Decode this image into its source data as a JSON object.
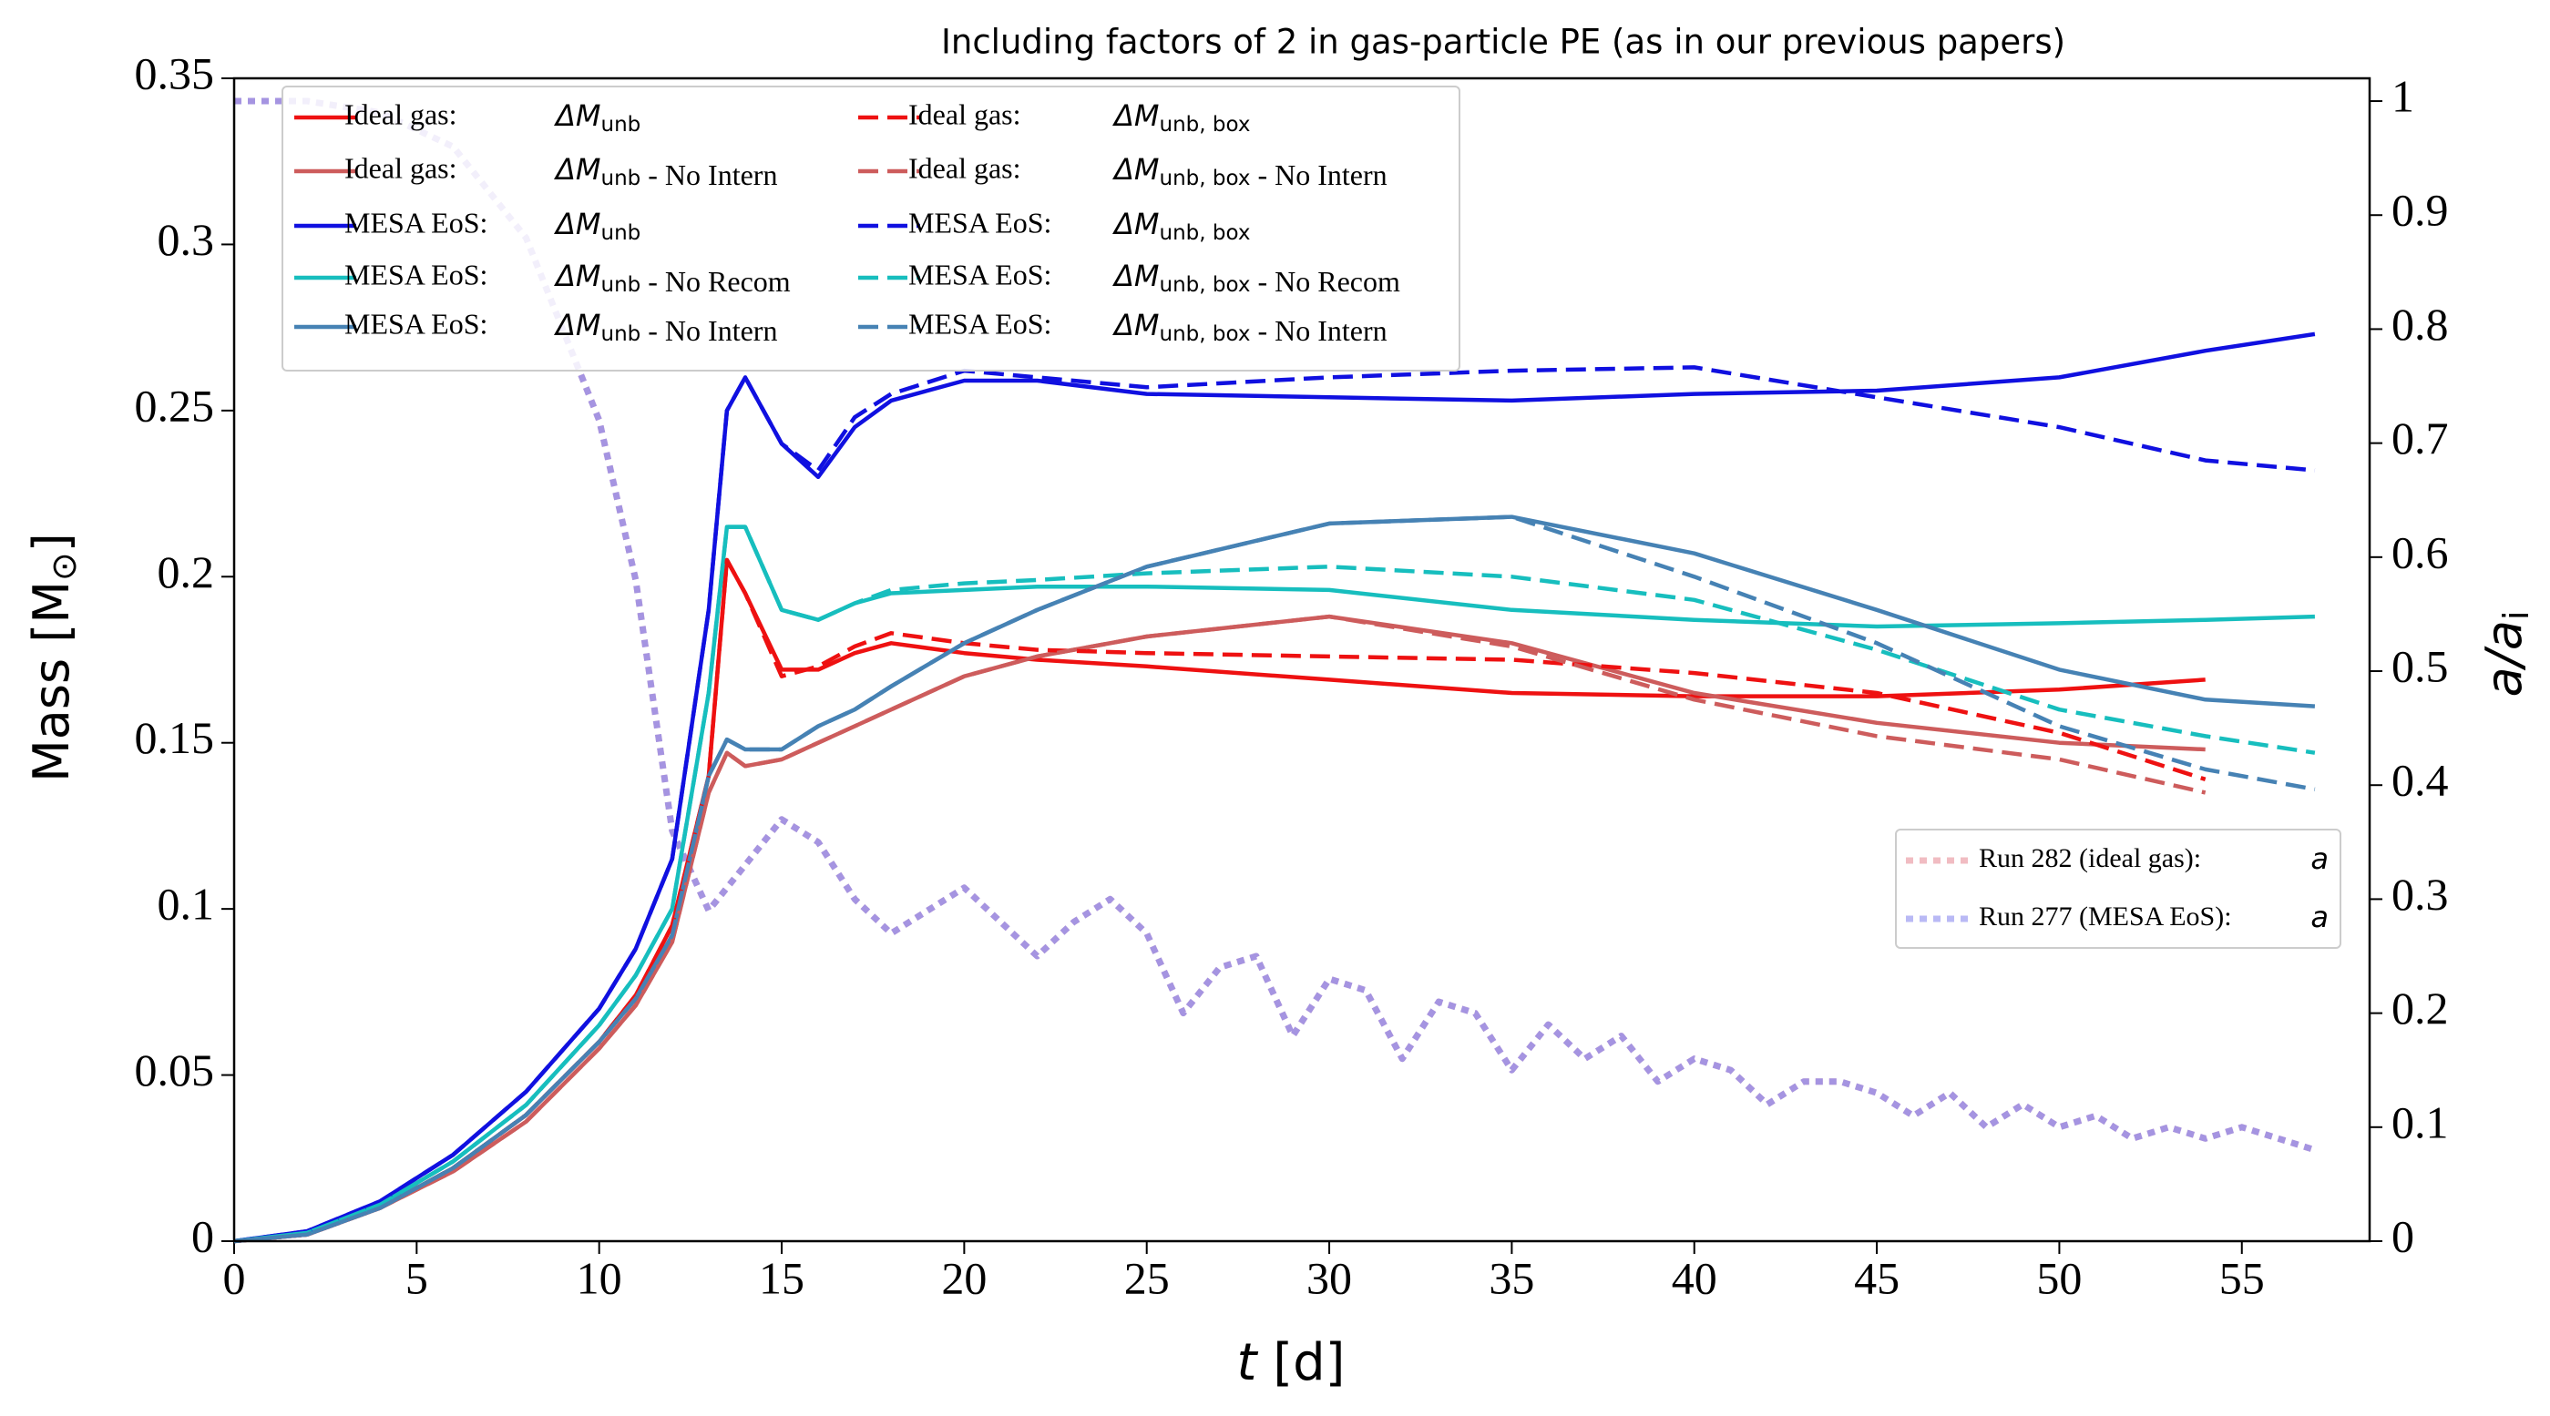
{
  "chart_data": {
    "type": "line",
    "title": "Including factors of 2 in gas-particle PE (as in our previous papers)",
    "x_label": {
      "symbol": "t",
      "unit": "[d]"
    },
    "y_label": {
      "text": "Mass [M",
      "sun": "⊙",
      "close": "]"
    },
    "y2_label": {
      "a": "a/a",
      "sub": "i"
    },
    "xlim": [
      0,
      58.5
    ],
    "xticks": [
      0,
      5,
      10,
      15,
      20,
      25,
      30,
      35,
      40,
      45,
      50,
      55
    ],
    "ylim": [
      0,
      0.35
    ],
    "yticks": [
      0,
      0.05,
      0.1,
      0.15,
      0.2,
      0.25,
      0.3,
      0.35
    ],
    "y2lim": [
      0,
      1.02
    ],
    "y2ticks": [
      0,
      0.1,
      0.2,
      0.3,
      0.4,
      0.5,
      0.6,
      0.7,
      0.8,
      0.9,
      1
    ],
    "x": [
      0,
      2,
      4,
      6,
      8,
      10,
      11,
      12,
      13,
      13.5,
      14,
      15,
      16,
      17,
      18,
      20,
      22,
      25,
      30,
      35,
      40,
      45,
      50,
      54,
      57
    ],
    "series": [
      {
        "name": "Ideal gas:",
        "symbol": "ΔM",
        "subscript": "unb",
        "color": "#ee1111",
        "style": "solid",
        "values": [
          0,
          0.002,
          0.01,
          0.022,
          0.038,
          0.06,
          0.074,
          0.095,
          0.14,
          0.205,
          0.195,
          0.172,
          0.172,
          0.177,
          0.18,
          0.177,
          0.175,
          0.173,
          0.169,
          0.165,
          0.164,
          0.164,
          0.166,
          0.169,
          null
        ]
      },
      {
        "name": "Ideal gas:",
        "symbol": "ΔM",
        "subscript": "unb",
        "suffix": " - No Intern",
        "color": "#cd5c5c",
        "style": "solid",
        "values": [
          0,
          0.002,
          0.01,
          0.021,
          0.036,
          0.058,
          0.071,
          0.09,
          0.135,
          0.147,
          0.143,
          0.145,
          0.15,
          0.155,
          0.16,
          0.17,
          0.176,
          0.182,
          0.188,
          0.18,
          0.165,
          0.156,
          0.15,
          0.148,
          null
        ]
      },
      {
        "name": "MESA EoS:",
        "symbol": "ΔM",
        "subscript": "unb",
        "color": "#1010e0",
        "style": "solid",
        "values": [
          0,
          0.003,
          0.012,
          0.026,
          0.045,
          0.07,
          0.088,
          0.115,
          0.19,
          0.25,
          0.26,
          0.24,
          0.23,
          0.245,
          0.253,
          0.259,
          0.259,
          0.255,
          0.254,
          0.253,
          0.255,
          0.256,
          0.26,
          0.268,
          0.273
        ]
      },
      {
        "name": "MESA EoS:",
        "symbol": "ΔM",
        "subscript": "unb",
        "suffix": " - No Recom",
        "color": "#17bebe",
        "style": "solid",
        "values": [
          0,
          0.0025,
          0.011,
          0.024,
          0.041,
          0.065,
          0.08,
          0.1,
          0.165,
          0.215,
          0.215,
          0.19,
          0.187,
          0.192,
          0.195,
          0.196,
          0.197,
          0.197,
          0.196,
          0.19,
          0.187,
          0.185,
          0.186,
          0.187,
          0.188
        ]
      },
      {
        "name": "MESA EoS:",
        "symbol": "ΔM",
        "subscript": "unb",
        "suffix": " - No Intern",
        "color": "#4682b4",
        "style": "solid",
        "values": [
          0,
          0.002,
          0.01,
          0.022,
          0.038,
          0.06,
          0.073,
          0.092,
          0.14,
          0.151,
          0.148,
          0.148,
          0.155,
          0.16,
          0.167,
          0.18,
          0.19,
          0.203,
          0.216,
          0.218,
          0.207,
          0.19,
          0.172,
          0.163,
          0.161
        ]
      },
      {
        "name": "Ideal gas:",
        "symbol": "ΔM",
        "subscript": "unb, box",
        "color": "#ee1111",
        "style": "dashed",
        "values": [
          0,
          0.002,
          0.01,
          0.022,
          0.038,
          0.06,
          0.074,
          0.095,
          0.14,
          0.205,
          0.195,
          0.17,
          0.173,
          0.179,
          0.183,
          0.18,
          0.178,
          0.177,
          0.176,
          0.175,
          0.171,
          0.165,
          0.153,
          0.139,
          null
        ]
      },
      {
        "name": "Ideal gas:",
        "symbol": "ΔM",
        "subscript": "unb, box",
        "suffix": " - No Intern",
        "color": "#cd5c5c",
        "style": "dashed",
        "values": [
          0,
          0.002,
          0.01,
          0.021,
          0.036,
          0.058,
          0.071,
          0.09,
          0.135,
          0.147,
          0.143,
          0.145,
          0.15,
          0.155,
          0.16,
          0.17,
          0.176,
          0.182,
          0.188,
          0.179,
          0.163,
          0.152,
          0.145,
          0.135,
          null
        ]
      },
      {
        "name": "MESA EoS:",
        "symbol": "ΔM",
        "subscript": "unb, box",
        "color": "#1010e0",
        "style": "dashed",
        "values": [
          0,
          0.003,
          0.012,
          0.026,
          0.045,
          0.07,
          0.088,
          0.115,
          0.19,
          0.25,
          0.26,
          0.24,
          0.232,
          0.248,
          0.255,
          0.262,
          0.26,
          0.257,
          0.26,
          0.262,
          0.263,
          0.254,
          0.245,
          0.235,
          0.232
        ]
      },
      {
        "name": "MESA EoS:",
        "symbol": "ΔM",
        "subscript": "unb, box",
        "suffix": " - No Recom",
        "color": "#17bebe",
        "style": "dashed",
        "values": [
          0,
          0.0025,
          0.011,
          0.024,
          0.041,
          0.065,
          0.08,
          0.1,
          0.165,
          0.215,
          0.215,
          0.19,
          0.187,
          0.192,
          0.196,
          0.198,
          0.199,
          0.201,
          0.203,
          0.2,
          0.193,
          0.178,
          0.16,
          0.152,
          0.147
        ]
      },
      {
        "name": "MESA EoS:",
        "symbol": "ΔM",
        "subscript": "unb, box",
        "suffix": " - No Intern",
        "color": "#4682b4",
        "style": "dashed",
        "values": [
          0,
          0.002,
          0.01,
          0.022,
          0.038,
          0.06,
          0.073,
          0.092,
          0.14,
          0.151,
          0.148,
          0.148,
          0.155,
          0.16,
          0.167,
          0.18,
          0.19,
          0.203,
          0.216,
          0.218,
          0.2,
          0.18,
          0.155,
          0.142,
          0.136
        ]
      },
      {
        "name": "Run 282 (ideal gas):",
        "symbol": "a",
        "color": "#e8909a",
        "style": "dotted",
        "axis": "y2",
        "x": [
          0,
          2,
          4,
          6,
          8,
          10,
          11,
          12,
          13,
          14,
          15,
          16,
          17,
          18,
          19,
          20,
          21,
          22,
          23,
          24,
          25,
          26,
          27,
          28,
          29,
          30,
          31,
          32,
          33,
          34,
          35,
          36,
          37,
          38,
          39,
          40,
          41,
          42,
          43,
          44,
          45,
          46,
          47,
          48,
          49,
          50,
          51,
          52,
          53,
          54,
          55,
          56,
          57
        ],
        "values": [
          1,
          1,
          0.99,
          0.96,
          0.88,
          0.72,
          0.58,
          0.36,
          0.29,
          0.33,
          0.37,
          0.35,
          0.3,
          0.27,
          0.29,
          0.31,
          0.28,
          0.25,
          0.28,
          0.3,
          0.27,
          0.2,
          0.24,
          0.25,
          0.18,
          0.23,
          0.22,
          0.16,
          0.21,
          0.2,
          0.15,
          0.19,
          0.16,
          0.18,
          0.14,
          0.16,
          0.15,
          0.12,
          0.14,
          0.14,
          0.13,
          0.11,
          0.13,
          0.1,
          0.12,
          0.1,
          0.11,
          0.09,
          0.1,
          0.09,
          0.1,
          0.09,
          0.08
        ]
      },
      {
        "name": "Run 277 (MESA EoS):",
        "symbol": "a",
        "color": "#8c8cf0",
        "style": "dotted",
        "axis": "y2",
        "x": [
          0,
          2,
          4,
          6,
          8,
          10,
          11,
          12,
          13,
          14,
          15,
          16,
          17,
          18,
          19,
          20,
          21,
          22,
          23,
          24,
          25,
          26,
          27,
          28,
          29,
          30,
          31,
          32,
          33,
          34,
          35,
          36,
          37,
          38,
          39,
          40,
          41,
          42,
          43,
          44,
          45,
          46,
          47,
          48,
          49,
          50,
          51,
          52,
          53,
          54,
          55,
          56,
          57
        ],
        "values": [
          1,
          1,
          0.99,
          0.96,
          0.88,
          0.72,
          0.58,
          0.36,
          0.29,
          0.33,
          0.37,
          0.35,
          0.3,
          0.27,
          0.29,
          0.31,
          0.28,
          0.25,
          0.28,
          0.3,
          0.27,
          0.2,
          0.24,
          0.25,
          0.18,
          0.23,
          0.22,
          0.16,
          0.21,
          0.2,
          0.15,
          0.19,
          0.16,
          0.18,
          0.14,
          0.16,
          0.15,
          0.12,
          0.14,
          0.14,
          0.13,
          0.11,
          0.13,
          0.1,
          0.12,
          0.1,
          0.11,
          0.09,
          0.1,
          0.09,
          0.1,
          0.09,
          0.08
        ]
      }
    ]
  }
}
